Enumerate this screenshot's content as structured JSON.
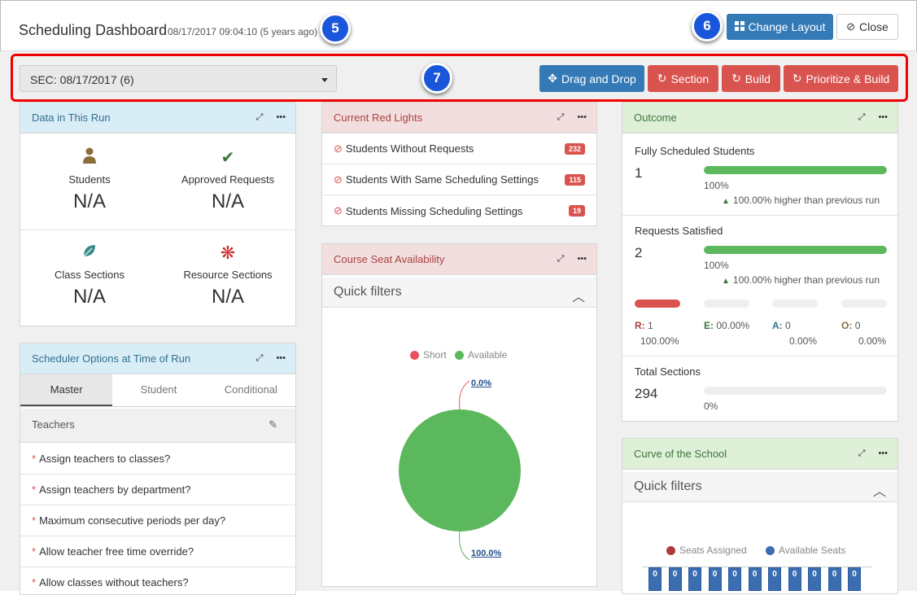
{
  "header": {
    "title": "Scheduling Dashboard",
    "timestamp": "08/17/2017 09:04:10 (5 years ago)",
    "change_layout": "Change Layout",
    "close": "Close"
  },
  "callouts": {
    "c5": "5",
    "c6": "6",
    "c7": "7"
  },
  "toolbar": {
    "run_select": "SEC: 08/17/2017 (6)",
    "drag_drop": "Drag and Drop",
    "section": "Section",
    "build": "Build",
    "prioritize_build": "Prioritize & Build"
  },
  "data_run": {
    "title": "Data in This Run",
    "students_label": "Students",
    "students_value": "N/A",
    "approved_label": "Approved Requests",
    "approved_value": "N/A",
    "class_label": "Class Sections",
    "class_value": "N/A",
    "resource_label": "Resource Sections",
    "resource_value": "N/A"
  },
  "options": {
    "title": "Scheduler Options at Time of Run",
    "tabs": [
      "Master",
      "Student",
      "Conditional"
    ],
    "group": "Teachers",
    "items": [
      "Assign teachers to classes?",
      "Assign teachers by department?",
      "Maximum consecutive periods per day?",
      "Allow teacher free time override?",
      "Allow classes without teachers?"
    ]
  },
  "red_lights": {
    "title": "Current Red Lights",
    "items": [
      {
        "label": "Students Without Requests",
        "count": "232"
      },
      {
        "label": "Students With Same Scheduling Settings",
        "count": "115"
      },
      {
        "label": "Students Missing Scheduling Settings",
        "count": "19"
      }
    ]
  },
  "seat": {
    "title": "Course Seat Availability",
    "quick_filters": "Quick filters",
    "legend_short": "Short",
    "legend_available": "Available",
    "short_pct": "0.0%",
    "available_pct": "100.0%",
    "colors": {
      "short": "#e8535a",
      "available": "#5cb85c"
    }
  },
  "chart_data": {
    "type": "pie",
    "series": [
      {
        "name": "Short",
        "value": 0.0
      },
      {
        "name": "Available",
        "value": 100.0
      }
    ]
  },
  "outcome": {
    "title": "Outcome",
    "fully": {
      "label": "Fully Scheduled Students",
      "value": "1",
      "pct": "100%",
      "fill": 1.0,
      "compare": "100.00% higher than previous run"
    },
    "requests": {
      "label": "Requests Satisfied",
      "value": "2",
      "pct": "100%",
      "fill": 1.0,
      "compare": "100.00% higher than previous run"
    },
    "breakdown": [
      {
        "key": "R:",
        "val": "1",
        "pct": "100.00%",
        "color": "#a94442"
      },
      {
        "key": "E:",
        "val": "00.00%",
        "pct": "",
        "color": "#3c763d"
      },
      {
        "key": "A:",
        "val": "0",
        "pct": "0.00%",
        "color": "#31708f"
      },
      {
        "key": "O:",
        "val": "0",
        "pct": "0.00%",
        "color": "#8a6d3b"
      }
    ],
    "sections": {
      "label": "Total Sections",
      "value": "294",
      "pct": "0%",
      "fill": 0.0
    }
  },
  "curve": {
    "title": "Curve of the School",
    "quick_filters": "Quick filters",
    "legend_assigned": "Seats Assigned",
    "legend_available": "Available Seats",
    "columns": [
      "0",
      "0",
      "0",
      "0",
      "0",
      "0",
      "0",
      "0",
      "0",
      "0",
      "0"
    ]
  }
}
